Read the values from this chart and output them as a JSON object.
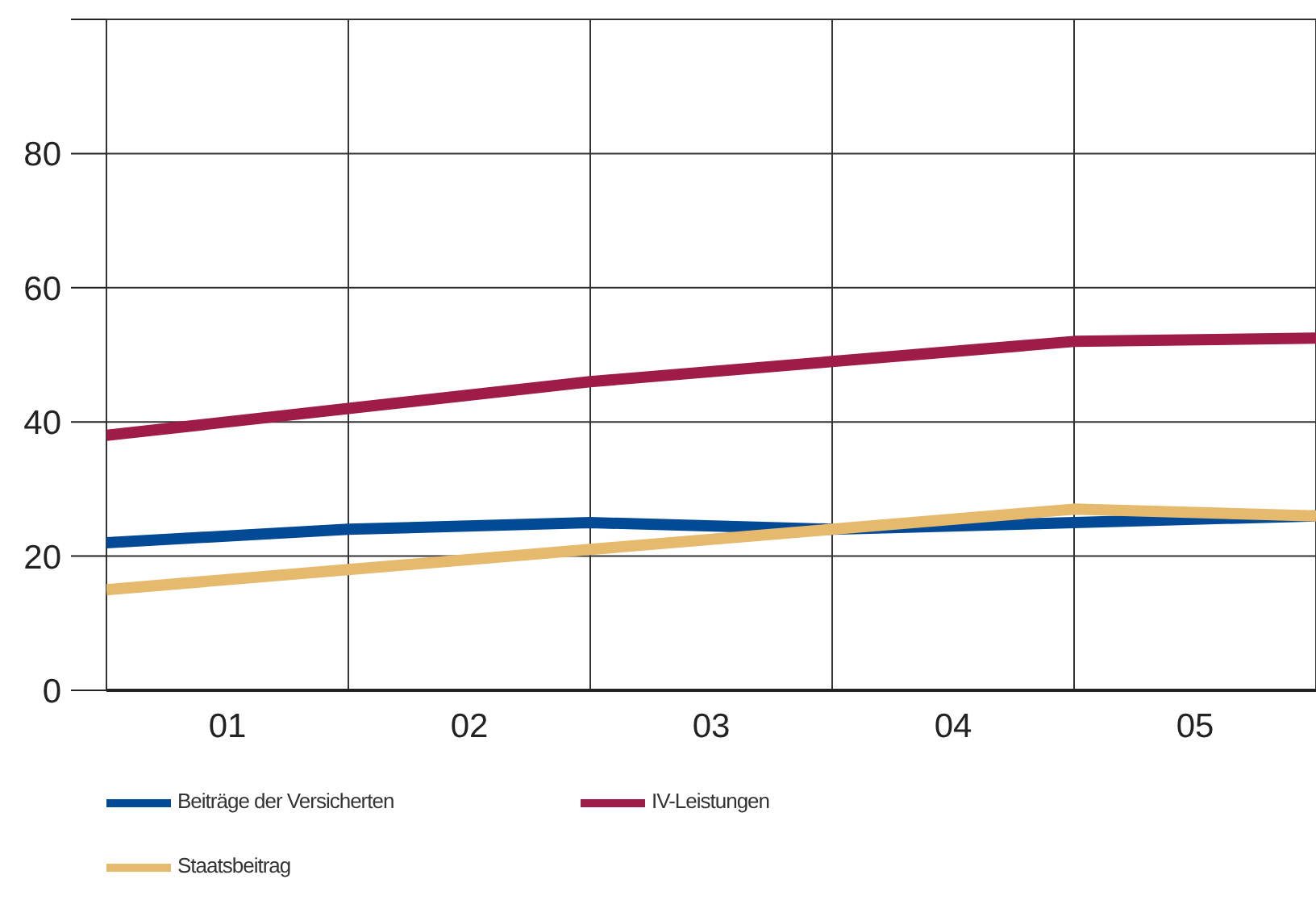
{
  "chart_data": {
    "type": "line",
    "x": [
      0,
      1,
      2,
      3,
      4,
      5
    ],
    "xlim": [
      0,
      5
    ],
    "xticks": [
      {
        "value": 0,
        "label": null
      },
      {
        "value": 0.5,
        "label": "01"
      },
      {
        "value": 1,
        "label": null
      },
      {
        "value": 1.5,
        "label": "02"
      },
      {
        "value": 2,
        "label": null
      },
      {
        "value": 2.5,
        "label": "03"
      },
      {
        "value": 3,
        "label": null
      },
      {
        "value": 3.5,
        "label": "04"
      },
      {
        "value": 4,
        "label": null
      },
      {
        "value": 4.5,
        "label": "05"
      },
      {
        "value": 5,
        "label": null
      }
    ],
    "ylim": [
      0,
      100
    ],
    "yticks": [
      0,
      20,
      40,
      60,
      80,
      {
        "value": 100,
        "label": null
      }
    ],
    "grid": true,
    "legend": "bottom left",
    "marker": "none",
    "line_style": "solid",
    "series": [
      {
        "name": "Beiträge der Versicherten",
        "color": "#024a96",
        "values": [
          22,
          24,
          25,
          24,
          25,
          26
        ]
      },
      {
        "name": "IV-Leistungen",
        "color": "#9e1c47",
        "values": [
          38,
          42,
          46,
          49,
          52,
          52.5
        ]
      },
      {
        "name": "Staatsbeitrag",
        "color": "#e6ba6c",
        "values": [
          15,
          18,
          21,
          24,
          27,
          26
        ]
      }
    ]
  }
}
